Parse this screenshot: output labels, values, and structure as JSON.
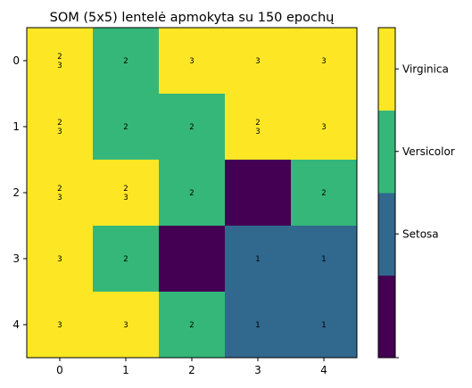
{
  "chart_data": {
    "type": "heatmap",
    "title": "SOM (5x5) lentelė apmokyta su 150 epochų",
    "xlabel": "",
    "ylabel": "",
    "x_ticks": [
      "0",
      "1",
      "2",
      "3",
      "4"
    ],
    "y_ticks": [
      "0",
      "1",
      "2",
      "3",
      "4"
    ],
    "rows": [
      [
        {
          "value": 3,
          "label": "2\n3"
        },
        {
          "value": 2,
          "label": "2"
        },
        {
          "value": 3,
          "label": "3"
        },
        {
          "value": 3,
          "label": "3"
        },
        {
          "value": 3,
          "label": "3"
        }
      ],
      [
        {
          "value": 3,
          "label": "2\n3"
        },
        {
          "value": 2,
          "label": "2"
        },
        {
          "value": 2,
          "label": "2"
        },
        {
          "value": 3,
          "label": "2\n3"
        },
        {
          "value": 3,
          "label": "3"
        }
      ],
      [
        {
          "value": 3,
          "label": "2\n3"
        },
        {
          "value": 3,
          "label": "2\n3"
        },
        {
          "value": 2,
          "label": "2"
        },
        {
          "value": 0,
          "label": ""
        },
        {
          "value": 2,
          "label": "2"
        }
      ],
      [
        {
          "value": 3,
          "label": "3"
        },
        {
          "value": 2,
          "label": "2"
        },
        {
          "value": 0,
          "label": ""
        },
        {
          "value": 1,
          "label": "1"
        },
        {
          "value": 1,
          "label": "1"
        }
      ],
      [
        {
          "value": 3,
          "label": "3"
        },
        {
          "value": 3,
          "label": "3"
        },
        {
          "value": 2,
          "label": "2"
        },
        {
          "value": 1,
          "label": "1"
        },
        {
          "value": 1,
          "label": "1"
        }
      ]
    ],
    "colorbar": {
      "range": [
        0,
        4
      ],
      "levels": [
        {
          "value": 0,
          "color": "#440154",
          "label": ""
        },
        {
          "value": 1,
          "color": "#31688e",
          "label": "Setosa"
        },
        {
          "value": 2,
          "color": "#35b779",
          "label": "Versicolor"
        },
        {
          "value": 3,
          "color": "#fde725",
          "label": "Virginica"
        }
      ]
    }
  }
}
